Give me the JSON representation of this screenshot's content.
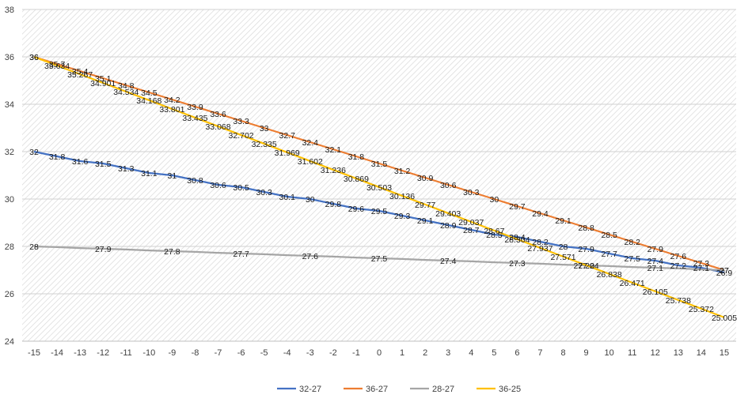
{
  "chart_data": {
    "type": "line",
    "title": "",
    "xlabel": "",
    "ylabel": "",
    "x": [
      -15,
      -14,
      -13,
      -12,
      -11,
      -10,
      -9,
      -8,
      -7,
      -6,
      -5,
      -4,
      -3,
      -2,
      -1,
      0,
      1,
      2,
      3,
      4,
      5,
      6,
      7,
      8,
      9,
      10,
      11,
      12,
      13,
      14,
      15
    ],
    "ylim": [
      24,
      38
    ],
    "yticks": [
      24,
      26,
      28,
      30,
      32,
      34,
      36,
      38
    ],
    "grid": true,
    "background_pattern": "diagonal-hatch",
    "legend_position": "bottom",
    "series": [
      {
        "name": "32-27",
        "color": "#4472C4",
        "values": [
          32,
          31.8,
          31.6,
          31.5,
          31.3,
          31.1,
          31,
          30.8,
          30.6,
          30.5,
          30.3,
          30.1,
          30,
          29.8,
          29.6,
          29.5,
          29.3,
          29.1,
          28.9,
          28.7,
          28.5,
          28.4,
          28.2,
          28,
          27.9,
          27.7,
          27.5,
          27.4,
          27.2,
          27.1,
          26.9
        ],
        "labels": [
          "32",
          "31.8",
          "31.6",
          "31.5",
          "31.3",
          "31.1",
          "31",
          "30.8",
          "30.6",
          "30.5",
          "30.3",
          "30.1",
          "30",
          "29.8",
          "29.6",
          "29.5",
          "29.3",
          "29.1",
          "28.9",
          "28.7",
          "28.5",
          "28.4",
          "28.2",
          "28",
          "27.9",
          "27.7",
          "27.5",
          "27.4",
          "27.2",
          "27.1",
          "26.9"
        ]
      },
      {
        "name": "36-27",
        "color": "#ED7D31",
        "values": [
          36,
          35.7,
          35.4,
          35.1,
          34.8,
          34.5,
          34.2,
          33.9,
          33.6,
          33.3,
          33,
          32.7,
          32.4,
          32.1,
          31.8,
          31.5,
          31.2,
          30.9,
          30.6,
          30.3,
          30,
          29.7,
          29.4,
          29.1,
          28.8,
          28.5,
          28.2,
          27.9,
          27.6,
          27.3,
          27
        ],
        "labels": [
          "36",
          "35.7",
          "35.4",
          "35.1",
          "34.8",
          "34.5",
          "34.2",
          "33.9",
          "33.6",
          "33.3",
          "33",
          "32.7",
          "32.4",
          "32.1",
          "31.8",
          "31.5",
          "31.2",
          "30.9",
          "30.6",
          "30.3",
          "30",
          "29.7",
          "29.4",
          "29.1",
          "28.8",
          "28.5",
          "28.2",
          "27.9",
          "27.6",
          "27.3",
          "27"
        ]
      },
      {
        "name": "28-27",
        "color": "#A5A5A5",
        "values": [
          28,
          27.97,
          27.93,
          27.9,
          27.87,
          27.83,
          27.8,
          27.77,
          27.73,
          27.7,
          27.67,
          27.63,
          27.6,
          27.57,
          27.53,
          27.5,
          27.47,
          27.43,
          27.4,
          27.37,
          27.33,
          27.3,
          27.27,
          27.23,
          27.2,
          27.17,
          27.13,
          27.1,
          27.07,
          27.03,
          27
        ],
        "labels": [
          "28",
          "",
          "",
          "27.9",
          "",
          "",
          "27.8",
          "",
          "",
          "27.7",
          "",
          "",
          "27.6",
          "",
          "",
          "27.5",
          "",
          "",
          "27.4",
          "",
          "",
          "27.3",
          "",
          "",
          "27.2",
          "",
          "",
          "27.1",
          "",
          "",
          "27"
        ]
      },
      {
        "name": "36-25",
        "color": "#FFC000",
        "values": [
          36,
          35.634,
          35.267,
          34.901,
          34.534,
          34.168,
          33.801,
          33.435,
          33.068,
          32.702,
          32.335,
          31.969,
          31.602,
          31.236,
          30.869,
          30.503,
          30.136,
          29.77,
          29.403,
          29.037,
          28.67,
          28.304,
          27.937,
          27.571,
          27.204,
          26.838,
          26.471,
          26.105,
          25.738,
          25.372,
          25.005
        ],
        "labels": [
          "36",
          "35.634",
          "35.267",
          "34.901",
          "34.534",
          "34.168",
          "33.801",
          "33.435",
          "33.068",
          "32.702",
          "32.335",
          "31.969",
          "31.602",
          "31.236",
          "30.869",
          "30.503",
          "30.136",
          "29.77",
          "29.403",
          "29.037",
          "28.67",
          "28.304",
          "27.937",
          "27.571",
          "27.204",
          "26.838",
          "26.471",
          "26.105",
          "25.738",
          "25.372",
          "25.005"
        ]
      }
    ]
  }
}
